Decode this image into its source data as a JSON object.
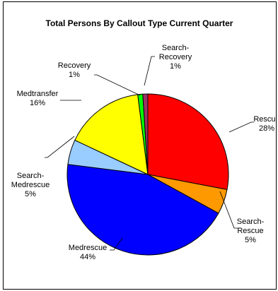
{
  "chart_data": {
    "type": "pie",
    "title": "Total Persons By Callout Type Current Quarter",
    "start_angle_deg": 0,
    "direction": "clockwise",
    "slices": [
      {
        "name": "Rescue",
        "label_lines": [
          "Rescue",
          "28%"
        ],
        "percent": 28,
        "value": 28,
        "color": "#ff0000"
      },
      {
        "name": "Search-Rescue",
        "label_lines": [
          "Search-",
          "Rescue",
          "5%"
        ],
        "percent": 5,
        "value": 5,
        "color": "#ff9900"
      },
      {
        "name": "Medrescue",
        "label_lines": [
          "Medrescue",
          "44%"
        ],
        "percent": 44,
        "value": 44,
        "color": "#0000ff"
      },
      {
        "name": "Search-Medrescue",
        "label_lines": [
          "Search-",
          "Medrescue",
          "5%"
        ],
        "percent": 5,
        "value": 5,
        "color": "#99ccff"
      },
      {
        "name": "Medtransfer",
        "label_lines": [
          "Medtransfer",
          "16%"
        ],
        "percent": 16,
        "value": 16,
        "color": "#ffff00"
      },
      {
        "name": "Recovery",
        "label_lines": [
          "Recovery",
          "1%"
        ],
        "percent": 1,
        "value": 1,
        "color": "#00ff00"
      },
      {
        "name": "Search-Recovery",
        "label_lines": [
          "Search-",
          "Recovery",
          "1%"
        ],
        "percent": 1,
        "value": 1,
        "color": "#993366"
      }
    ]
  }
}
